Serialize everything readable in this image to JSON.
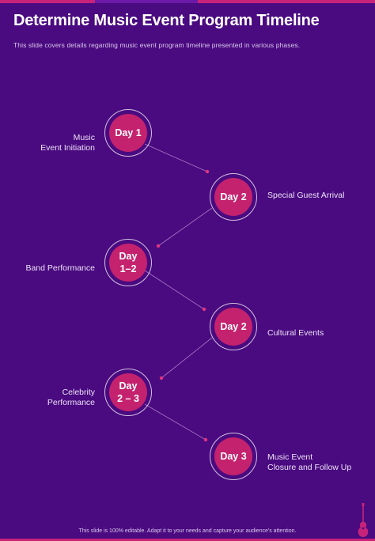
{
  "title": "Determine Music Event Program Timeline",
  "subtitle": "This slide covers details regarding music event program timeline presented in various phases.",
  "timeline": [
    {
      "day": "Day 1",
      "label": "Music\nEvent Initiation",
      "side": "left"
    },
    {
      "day": "Day 2",
      "label": "Special Guest Arrival",
      "side": "right"
    },
    {
      "day": "Day\n1–2",
      "label": "Band Performance",
      "side": "left"
    },
    {
      "day": "Day 2",
      "label": "Cultural Events",
      "side": "right"
    },
    {
      "day": "Day\n2 – 3",
      "label": "Celebrity\nPerformance",
      "side": "left"
    },
    {
      "day": "Day 3",
      "label": "Music Event\nClosure and Follow Up",
      "side": "right"
    }
  ],
  "footer": "This slide is 100% editable. Adapt it to your needs and capture your audience's attention.",
  "colors": {
    "background": "#4a0a80",
    "accent": "#c4226e"
  },
  "icons": {
    "footer": "guitar-icon"
  }
}
